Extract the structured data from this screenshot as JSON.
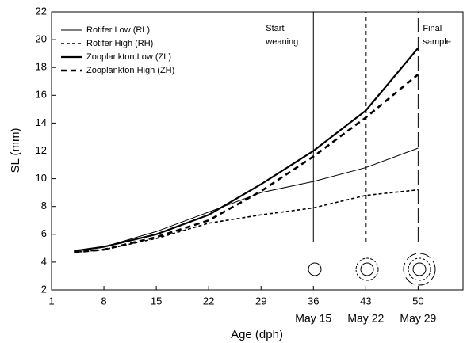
{
  "chart_data": {
    "type": "line",
    "xlabel": "Age (dph)",
    "ylabel": "SL (mm)",
    "x": [
      4,
      8,
      15,
      22,
      29,
      36,
      43,
      50
    ],
    "series": [
      {
        "name": "Rotifer Low (RL)",
        "color": "#000000",
        "width": 1,
        "dash": "none",
        "values": [
          4.8,
          5.1,
          6.2,
          7.6,
          9.0,
          9.8,
          10.8,
          12.2
        ]
      },
      {
        "name": "Rotifer High (RH)",
        "color": "#000000",
        "width": 1.6,
        "dash": "4,3",
        "values": [
          4.7,
          4.9,
          5.7,
          6.8,
          7.4,
          7.9,
          8.8,
          9.2
        ]
      },
      {
        "name": "Zooplankton Low (ZL)",
        "color": "#000000",
        "width": 2.2,
        "dash": "none",
        "values": [
          4.8,
          5.1,
          6.0,
          7.4,
          9.6,
          12.0,
          14.9,
          19.4
        ]
      },
      {
        "name": "Zooplankton High (ZH)",
        "color": "#000000",
        "width": 2.6,
        "dash": "7,5",
        "values": [
          4.7,
          4.9,
          5.8,
          7.0,
          9.1,
          11.6,
          14.4,
          17.5
        ]
      }
    ],
    "xlim": [
      1,
      56
    ],
    "ylim": [
      2,
      22
    ],
    "xticks": [
      1,
      8,
      15,
      22,
      29,
      36,
      43,
      50
    ],
    "yticks": [
      2,
      4,
      6,
      8,
      10,
      12,
      14,
      16,
      18,
      20,
      22
    ],
    "legend": "upper left",
    "vlines": [
      {
        "x": 36,
        "dash": "none",
        "width": 1
      },
      {
        "x": 43,
        "dash": "5,4",
        "width": 2
      },
      {
        "x": 50,
        "dash": "18,6",
        "width": 1
      }
    ],
    "annotations": [
      {
        "x": 36,
        "lines": [
          "Start",
          "weaning"
        ]
      },
      {
        "x": 50,
        "lines": [
          "Final",
          "sample"
        ]
      }
    ],
    "date_labels": [
      {
        "value": 36,
        "label": "May 15"
      },
      {
        "value": 43,
        "label": "May 22"
      },
      {
        "value": 50,
        "label": "May 29"
      }
    ]
  }
}
